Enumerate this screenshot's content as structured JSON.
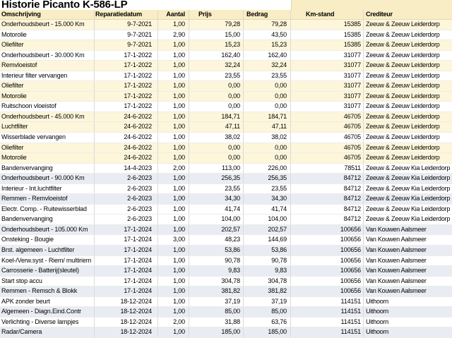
{
  "title": "Historie Picanto K-586-LP",
  "colors": {
    "header_bg": "#f8edc4",
    "row_shade_cream": "#fdf6da",
    "row_shade_blue": "#e9edf3",
    "row_white": "#ffffff",
    "grid_line_vertical": "#d9d9d9",
    "grid_line_horizontal": "#ececec",
    "text": "#000000"
  },
  "table": {
    "columns": [
      {
        "id": "omschrijving",
        "label": "Omschrijving"
      },
      {
        "id": "reparatiedatum",
        "label": "Reparatiedatum"
      },
      {
        "id": "aantal",
        "label": "Aantal"
      },
      {
        "id": "prijs",
        "label": "Prijs"
      },
      {
        "id": "bedrag",
        "label": "Bedrag"
      },
      {
        "id": "kmstand",
        "label": "Km-stand"
      },
      {
        "id": "crediteur",
        "label": "Crediteur"
      }
    ],
    "rows": [
      {
        "shade": "cream",
        "cells": [
          "Onderhoudsbeurt - 15.000 Km",
          "9-7-2021",
          "1,00",
          "79,28",
          "79,28",
          "15385",
          "Zeeuw & Zeeuw Leiderdorp"
        ]
      },
      {
        "shade": "white",
        "cells": [
          "Motorolie",
          "9-7-2021",
          "2,90",
          "15,00",
          "43,50",
          "15385",
          "Zeeuw & Zeeuw Leiderdorp"
        ]
      },
      {
        "shade": "cream",
        "cells": [
          "Oliefilter",
          "9-7-2021",
          "1,00",
          "15,23",
          "15,23",
          "15385",
          "Zeeuw & Zeeuw Leiderdorp"
        ]
      },
      {
        "shade": "white",
        "cells": [
          "Onderhoudsbeurt - 30.000 Km",
          "17-1-2022",
          "1,00",
          "162,40",
          "162,40",
          "31077",
          "Zeeuw & Zeeuw Leiderdorp"
        ]
      },
      {
        "shade": "cream",
        "cells": [
          "Remvloeistof",
          "17-1-2022",
          "1,00",
          "32,24",
          "32,24",
          "31077",
          "Zeeuw & Zeeuw Leiderdorp"
        ]
      },
      {
        "shade": "white",
        "cells": [
          "Interieur filter vervangen",
          "17-1-2022",
          "1,00",
          "23,55",
          "23,55",
          "31077",
          "Zeeuw & Zeeuw Leiderdorp"
        ]
      },
      {
        "shade": "cream",
        "cells": [
          "Oliefilter",
          "17-1-2022",
          "1,00",
          "0,00",
          "0,00",
          "31077",
          "Zeeuw & Zeeuw Leiderdorp"
        ]
      },
      {
        "shade": "cream",
        "cells": [
          "Motorolie",
          "17-1-2022",
          "1,00",
          "0,00",
          "0,00",
          "31077",
          "Zeeuw & Zeeuw Leiderdorp"
        ]
      },
      {
        "shade": "white",
        "cells": [
          "Ruitschoon vloeistof",
          "17-1-2022",
          "1,00",
          "0,00",
          "0,00",
          "31077",
          "Zeeuw & Zeeuw Leiderdorp"
        ]
      },
      {
        "shade": "cream",
        "cells": [
          "Onderhoudsbeurt - 45.000 Km",
          "24-6-2022",
          "1,00",
          "184,71",
          "184,71",
          "46705",
          "Zeeuw & Zeeuw Leiderdorp"
        ]
      },
      {
        "shade": "cream",
        "cells": [
          "Luchtfilter",
          "24-6-2022",
          "1,00",
          "47,11",
          "47,11",
          "46705",
          "Zeeuw & Zeeuw Leiderdorp"
        ]
      },
      {
        "shade": "white",
        "cells": [
          "Wisserblade vervangen",
          "24-6-2022",
          "1,00",
          "38,02",
          "38,02",
          "46705",
          "Zeeuw & Zeeuw Leiderdorp"
        ]
      },
      {
        "shade": "cream",
        "cells": [
          "Oliefilter",
          "24-6-2022",
          "1,00",
          "0,00",
          "0,00",
          "46705",
          "Zeeuw & Zeeuw Leiderdorp"
        ]
      },
      {
        "shade": "cream",
        "cells": [
          "Motorolie",
          "24-6-2022",
          "1,00",
          "0,00",
          "0,00",
          "46705",
          "Zeeuw & Zeeuw Leiderdorp"
        ]
      },
      {
        "shade": "white",
        "cells": [
          "Bandenvervanging",
          "14-4-2023",
          "2,00",
          "113,00",
          "226,00",
          "78511",
          "Zeeuw & Zeeuw Kia Leiderdorp"
        ]
      },
      {
        "shade": "blue",
        "cells": [
          "Onderhoudsbeurt - 90.000 Km",
          "2-6-2023",
          "1,00",
          "256,35",
          "256,35",
          "84712",
          "Zeeuw & Zeeuw Kia Leiderdorp"
        ]
      },
      {
        "shade": "white",
        "cells": [
          "Interieur - Int.luchtfilter",
          "2-6-2023",
          "1,00",
          "23,55",
          "23,55",
          "84712",
          "Zeeuw & Zeeuw Kia Leiderdorp"
        ]
      },
      {
        "shade": "blue",
        "cells": [
          "Remmen - Remvloeistof",
          "2-6-2023",
          "1,00",
          "34,30",
          "34,30",
          "84712",
          "Zeeuw & Zeeuw Kia Leiderdorp"
        ]
      },
      {
        "shade": "white",
        "cells": [
          "Electr. Comp. - Ruitewisserblad",
          "2-6-2023",
          "1,00",
          "41,74",
          "41,74",
          "84712",
          "Zeeuw & Zeeuw Kia Leiderdorp"
        ]
      },
      {
        "shade": "white",
        "cells": [
          "Bandenvervanging",
          "2-6-2023",
          "1,00",
          "104,00",
          "104,00",
          "84712",
          "Zeeuw & Zeeuw Kia Leiderdorp"
        ]
      },
      {
        "shade": "blue",
        "cells": [
          "Onderhoudsbeurt - 105.000 Km",
          "17-1-2024",
          "1,00",
          "202,57",
          "202,57",
          "100656",
          "Van Kouwen Aalsmeer"
        ]
      },
      {
        "shade": "white",
        "cells": [
          "Onsteking - Bougie",
          "17-1-2024",
          "3,00",
          "48,23",
          "144,69",
          "100656",
          "Van Kouwen Aalsmeer"
        ]
      },
      {
        "shade": "blue",
        "cells": [
          "Brst. algemeen - Luchtfilter",
          "17-1-2024",
          "1,00",
          "53,86",
          "53,86",
          "100656",
          "Van Kouwen Aalsmeer"
        ]
      },
      {
        "shade": "white",
        "cells": [
          "Koel-/Verw.syst - Riem/ multiriem",
          "17-1-2024",
          "1,00",
          "90,78",
          "90,78",
          "100656",
          "Van Kouwen Aalsmeer"
        ]
      },
      {
        "shade": "blue",
        "cells": [
          "Carrosserie - Batterij(sleutel)",
          "17-1-2024",
          "1,00",
          "9,83",
          "9,83",
          "100656",
          "Van Kouwen Aalsmeer"
        ]
      },
      {
        "shade": "white",
        "cells": [
          "Start stop accu",
          "17-1-2024",
          "1,00",
          "304,78",
          "304,78",
          "100656",
          "Van Kouwen Aalsmeer"
        ]
      },
      {
        "shade": "blue",
        "cells": [
          "Remmen - Remsch & Blokk",
          "17-1-2024",
          "1,00",
          "381,82",
          "381,82",
          "100656",
          "Van Kouwen Aalsmeer"
        ]
      },
      {
        "shade": "white",
        "cells": [
          "APK zonder beurt",
          "18-12-2024",
          "1,00",
          "37,19",
          "37,19",
          "114151",
          "Uithoorn"
        ]
      },
      {
        "shade": "blue",
        "cells": [
          "Algemeen - Diagn.Eind.Contr",
          "18-12-2024",
          "1,00",
          "85,00",
          "85,00",
          "114151",
          "Uithoorn"
        ]
      },
      {
        "shade": "white",
        "cells": [
          "Verlichting - Diverse lampjes",
          "18-12-2024",
          "2,00",
          "31,88",
          "63,76",
          "114151",
          "Uithoorn"
        ]
      },
      {
        "shade": "blue",
        "cells": [
          "Radar/Camera",
          "18-12-2024",
          "1,00",
          "185,00",
          "185,00",
          "114151",
          "Uithoorn"
        ]
      }
    ]
  }
}
